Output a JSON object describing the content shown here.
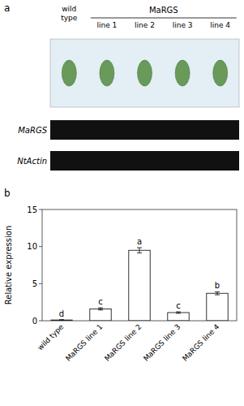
{
  "chart_data": {
    "type": "bar",
    "categories": [
      "wild type",
      "MaRGS line 1",
      "MaRGS line 2",
      "MaRGS line 3",
      "MaRGS line 4"
    ],
    "values": [
      0.1,
      1.6,
      9.5,
      1.1,
      3.7
    ],
    "errors": [
      0.05,
      0.15,
      0.35,
      0.1,
      0.2
    ],
    "letters": [
      "d",
      "c",
      "a",
      "c",
      "b"
    ],
    "y_label": "Relative expression",
    "ylim": [
      0,
      15
    ],
    "yticks": [
      0,
      5,
      10,
      15
    ],
    "color": "#ffffff",
    "grid": false,
    "annotations": [
      "a",
      "wild\ntype",
      "MaRGS",
      "line 1",
      "line 2",
      "line 3",
      "line 4",
      "MaRGS",
      "NtActin",
      "b"
    ]
  }
}
